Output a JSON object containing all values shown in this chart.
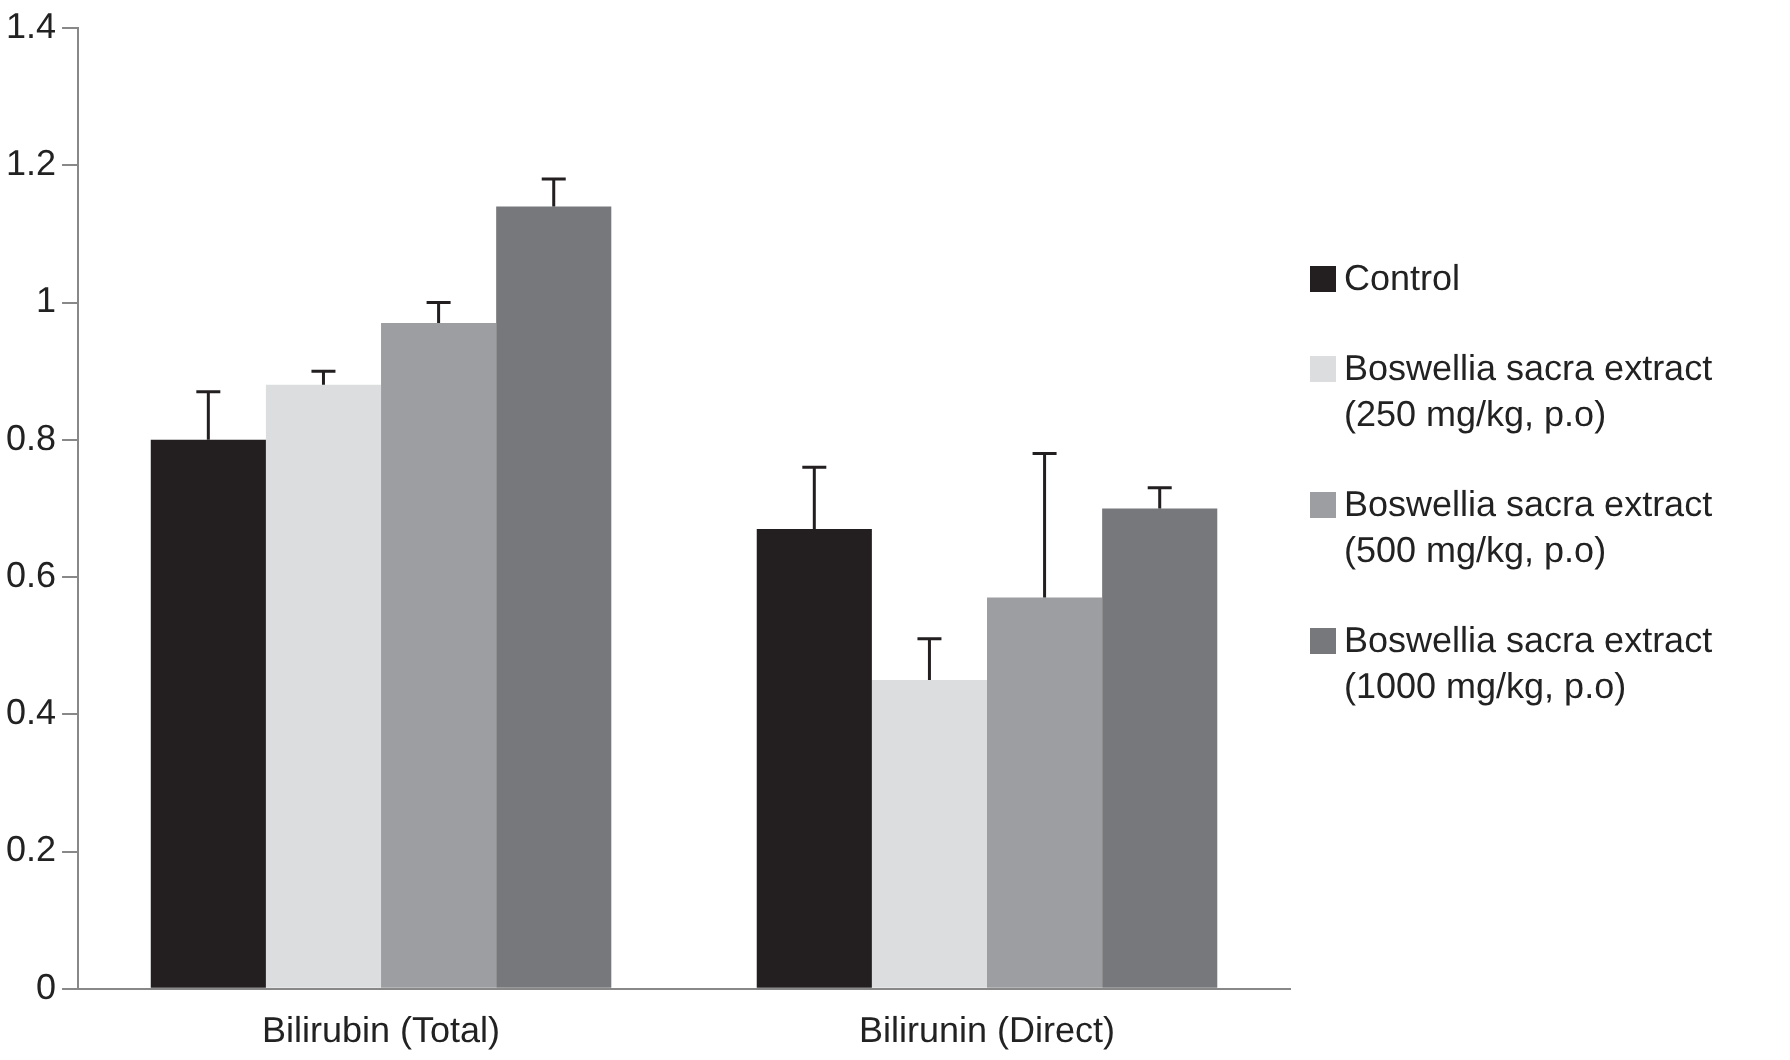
{
  "chart_data": {
    "type": "bar",
    "categories": [
      "Bilirubin (Total)",
      "Bilirunin (Direct)"
    ],
    "series": [
      {
        "name": "Control",
        "color": "#231f20",
        "values": [
          0.8,
          0.67
        ],
        "errors": [
          0.07,
          0.09
        ]
      },
      {
        "name": "Boswellia sacra extract (250 mg/kg, p.o)",
        "color": "#dcdddf",
        "values": [
          0.88,
          0.45
        ],
        "errors": [
          0.02,
          0.06
        ]
      },
      {
        "name": "Boswellia sacra extract (500 mg/kg, p.o)",
        "color": "#9d9ea1",
        "values": [
          0.97,
          0.57
        ],
        "errors": [
          0.03,
          0.21
        ]
      },
      {
        "name": "Boswellia sacra extract (1000 mg/kg, p.o)",
        "color": "#77787b",
        "values": [
          1.14,
          0.7
        ],
        "errors": [
          0.04,
          0.03
        ]
      }
    ],
    "ylim": [
      0,
      1.4
    ],
    "yticks": [
      0,
      0.2,
      0.4,
      0.6,
      0.8,
      1,
      1.2,
      1.4
    ],
    "grid": false,
    "legend": "right"
  }
}
